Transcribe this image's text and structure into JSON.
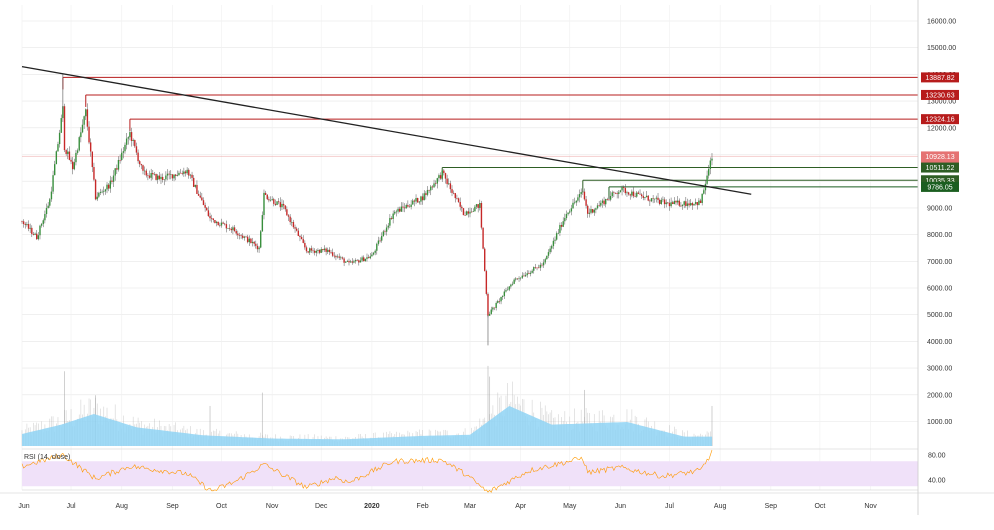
{
  "chart_data": {
    "type": "candlestick",
    "title": "",
    "price_axis": {
      "ticks": [
        "16000.00",
        "15000.00",
        "14000.00",
        "13000.00",
        "12000.00",
        "11000.00",
        "10000.00",
        "9000.00",
        "8000.00",
        "7000.00",
        "6000.00",
        "5000.00",
        "4000.00",
        "3000.00",
        "2000.00",
        "1000.00"
      ],
      "tick_values": [
        16000,
        15000,
        14000,
        13000,
        12000,
        11000,
        10000,
        9000,
        8000,
        7000,
        6000,
        5000,
        4000,
        3000,
        2000,
        1000
      ]
    },
    "x_axis": {
      "ticks": [
        "Jun",
        "Jul",
        "Aug",
        "Sep",
        "Oct",
        "Nov",
        "Dec",
        "2020",
        "Feb",
        "Mar",
        "Apr",
        "May",
        "Jun",
        "Jul",
        "Aug",
        "Sep",
        "Oct",
        "Nov"
      ],
      "bold_index": 7,
      "start": "2019-06-01",
      "end": "2020-11-30",
      "last_bar": "2020-07-27"
    },
    "price_keypoints": [
      [
        "2019-06-01",
        8500
      ],
      [
        "2019-06-10",
        7900
      ],
      [
        "2019-06-18",
        9300
      ],
      [
        "2019-06-26",
        12700
      ],
      [
        "2019-06-27",
        11300
      ],
      [
        "2019-07-02",
        10500
      ],
      [
        "2019-07-10",
        12600
      ],
      [
        "2019-07-16",
        9400
      ],
      [
        "2019-07-25",
        9900
      ],
      [
        "2019-08-06",
        11800
      ],
      [
        "2019-08-14",
        10300
      ],
      [
        "2019-08-25",
        10100
      ],
      [
        "2019-09-10",
        10400
      ],
      [
        "2019-09-24",
        8600
      ],
      [
        "2019-10-08",
        8200
      ],
      [
        "2019-10-24",
        7500
      ],
      [
        "2019-10-27",
        9500
      ],
      [
        "2019-11-08",
        9000
      ],
      [
        "2019-11-22",
        7400
      ],
      [
        "2019-12-05",
        7400
      ],
      [
        "2019-12-18",
        6900
      ],
      [
        "2020-01-01",
        7200
      ],
      [
        "2020-01-14",
        8800
      ],
      [
        "2020-02-01",
        9400
      ],
      [
        "2020-02-13",
        10300
      ],
      [
        "2020-02-26",
        8800
      ],
      [
        "2020-03-07",
        9100
      ],
      [
        "2020-03-12",
        5000
      ],
      [
        "2020-03-16",
        5300
      ],
      [
        "2020-03-28",
        6300
      ],
      [
        "2020-04-15",
        6900
      ],
      [
        "2020-04-29",
        8800
      ],
      [
        "2020-05-09",
        9600
      ],
      [
        "2020-05-12",
        8800
      ],
      [
        "2020-06-01",
        9700
      ],
      [
        "2020-06-15",
        9400
      ],
      [
        "2020-06-30",
        9150
      ],
      [
        "2020-07-20",
        9200
      ],
      [
        "2020-07-27",
        10900
      ]
    ],
    "levels": [
      {
        "label": "13887.82",
        "value": 13887.82,
        "from": "2019-06-26",
        "color": "#b71c1c"
      },
      {
        "label": "13230.63",
        "value": 13230.63,
        "from": "2019-07-10",
        "color": "#b71c1c"
      },
      {
        "label": "12324.16",
        "value": 12324.16,
        "from": "2019-08-06",
        "color": "#b71c1c"
      },
      {
        "label": "10928.13",
        "value": 10928.13,
        "from": "2019-06-01",
        "color": "#e57373"
      },
      {
        "label": "11:22:48",
        "value": 10580,
        "from": null,
        "color": "#e57373"
      },
      {
        "label": "10511.22",
        "value": 10511.22,
        "from": "2020-02-13",
        "color": "#2e5e24"
      },
      {
        "label": "10035.33",
        "value": 10035.33,
        "from": "2020-05-09",
        "color": "#2e5e24"
      },
      {
        "label": "9786.05",
        "value": 9786.05,
        "from": "2020-05-25",
        "color": "#1b5e20"
      }
    ],
    "trendline": {
      "from": [
        "2019-06-01",
        14290
      ],
      "to": [
        "2020-08-20",
        9510
      ],
      "color": "#222222"
    },
    "volume": {
      "ma_keypoints": [
        [
          "2019-06-01",
          450
        ],
        [
          "2019-06-25",
          800
        ],
        [
          "2019-07-15",
          1200
        ],
        [
          "2019-08-10",
          700
        ],
        [
          "2019-09-20",
          400
        ],
        [
          "2019-11-01",
          280
        ],
        [
          "2019-12-15",
          250
        ],
        [
          "2020-02-01",
          380
        ],
        [
          "2020-03-01",
          420
        ],
        [
          "2020-03-25",
          1500
        ],
        [
          "2020-04-20",
          800
        ],
        [
          "2020-06-05",
          900
        ],
        [
          "2020-07-10",
          350
        ],
        [
          "2020-07-27",
          350
        ]
      ],
      "spikes": [
        [
          "2019-06-27",
          2800
        ],
        [
          "2019-07-16",
          1900
        ],
        [
          "2019-09-24",
          1500
        ],
        [
          "2019-10-26",
          2000
        ],
        [
          "2020-03-12",
          3000
        ],
        [
          "2020-03-13",
          2600
        ],
        [
          "2020-05-10",
          2100
        ],
        [
          "2020-07-27",
          1500
        ]
      ]
    },
    "rsi": {
      "title": "RSI (14, close)",
      "ticks": [
        "80.00",
        "40.00"
      ],
      "tick_values": [
        80,
        40
      ],
      "band": [
        30,
        70
      ],
      "keypoints": [
        [
          "2019-06-01",
          62
        ],
        [
          "2019-06-26",
          80
        ],
        [
          "2019-07-16",
          42
        ],
        [
          "2019-08-06",
          62
        ],
        [
          "2019-09-10",
          50
        ],
        [
          "2019-09-25",
          22
        ],
        [
          "2019-10-10",
          38
        ],
        [
          "2019-10-27",
          65
        ],
        [
          "2019-11-22",
          28
        ],
        [
          "2019-12-10",
          44
        ],
        [
          "2019-12-18",
          36
        ],
        [
          "2020-01-14",
          70
        ],
        [
          "2020-02-13",
          72
        ],
        [
          "2020-02-28",
          48
        ],
        [
          "2020-03-12",
          20
        ],
        [
          "2020-04-06",
          55
        ],
        [
          "2020-05-09",
          75
        ],
        [
          "2020-05-12",
          52
        ],
        [
          "2020-06-01",
          60
        ],
        [
          "2020-06-27",
          46
        ],
        [
          "2020-07-20",
          55
        ],
        [
          "2020-07-27",
          84
        ]
      ]
    },
    "colors": {
      "up": "#388e3c",
      "down": "#c62828",
      "wick": "#555555",
      "volume_area": "#8fd3f4",
      "volume_bar": "#9e9e9e",
      "rsi_line": "#ff9800",
      "rsi_band": "#f0e1f9",
      "grid": "#e6e6e6"
    }
  }
}
